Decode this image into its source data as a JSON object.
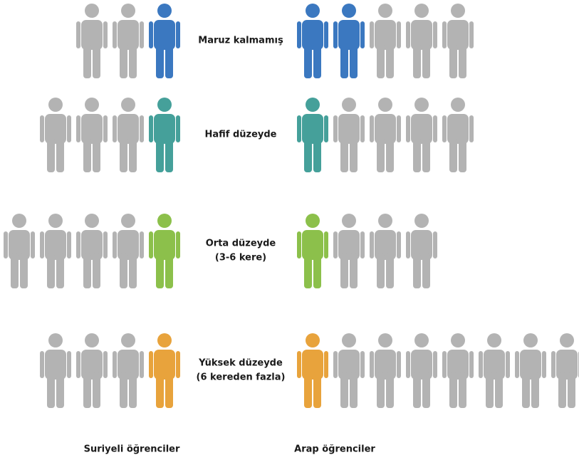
{
  "type": "pictogram",
  "gray": "#b3b3b3",
  "groups": [
    "Suriyeli öğrenciler",
    "Arap öğrenciler"
  ],
  "rows": [
    {
      "label": [
        "Maruz kalmamış"
      ],
      "color": "#3b78c0",
      "syrian": {
        "total": 3,
        "highlighted": 1
      },
      "arab": {
        "total": 5,
        "highlighted": 2
      }
    },
    {
      "label": [
        "Hafif düzeyde"
      ],
      "color": "#45a09a",
      "syrian": {
        "total": 4,
        "highlighted": 1
      },
      "arab": {
        "total": 5,
        "highlighted": 1
      }
    },
    {
      "label": [
        "Orta düzeyde",
        "(3-6 kere)"
      ],
      "color": "#8cc04b",
      "syrian": {
        "total": 5,
        "highlighted": 1
      },
      "arab": {
        "total": 4,
        "highlighted": 1
      }
    },
    {
      "label": [
        "Yüksek düzeyde",
        "(6 kereden fazla)"
      ],
      "color": "#e8a33c",
      "syrian": {
        "total": 4,
        "highlighted": 1
      },
      "arab": {
        "total": 8,
        "highlighted": 1
      }
    }
  ]
}
